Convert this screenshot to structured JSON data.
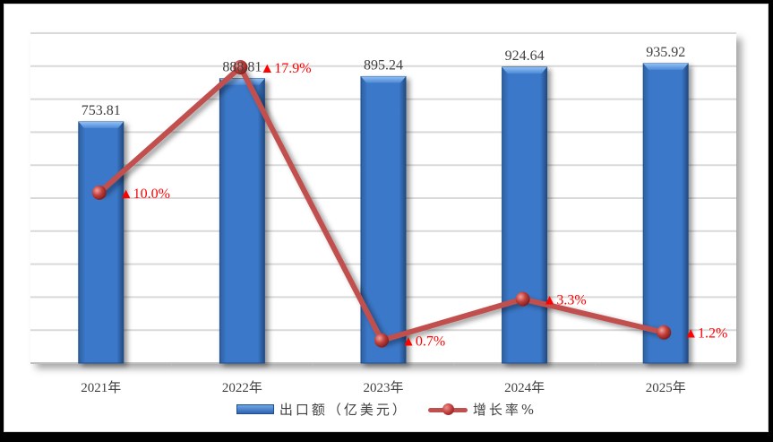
{
  "chart_data": {
    "type": "bar+line",
    "categories": [
      "2021年",
      "2022年",
      "2023年",
      "2024年",
      "2025年"
    ],
    "series": [
      {
        "name": "出口额（亿美元）",
        "type": "bar",
        "values": [
          753.81,
          888.81,
          895.24,
          924.64,
          935.92
        ],
        "color": "#3a78c9"
      },
      {
        "name": "增长率%",
        "type": "line",
        "values": [
          10.0,
          17.9,
          0.7,
          3.3,
          1.2
        ],
        "color": "#c0504d"
      }
    ],
    "value_labels": [
      "753.81",
      "888.81",
      "895.24",
      "924.64",
      "935.92"
    ],
    "pct_labels": [
      "▲10.0%",
      "▲17.9%",
      "▲0.7%",
      "▲3.3%",
      "▲1.2%"
    ],
    "title": "",
    "xlabel": "",
    "ylabel": "",
    "grid": true,
    "legend_position": "bottom"
  },
  "legend": {
    "bar_label": "出口额（亿美元）",
    "line_label": "增长率%"
  },
  "colors": {
    "bar": "#3a78c9",
    "line": "#c0504d",
    "pct_text": "#ff0000",
    "grid": "#d9d9d9"
  }
}
